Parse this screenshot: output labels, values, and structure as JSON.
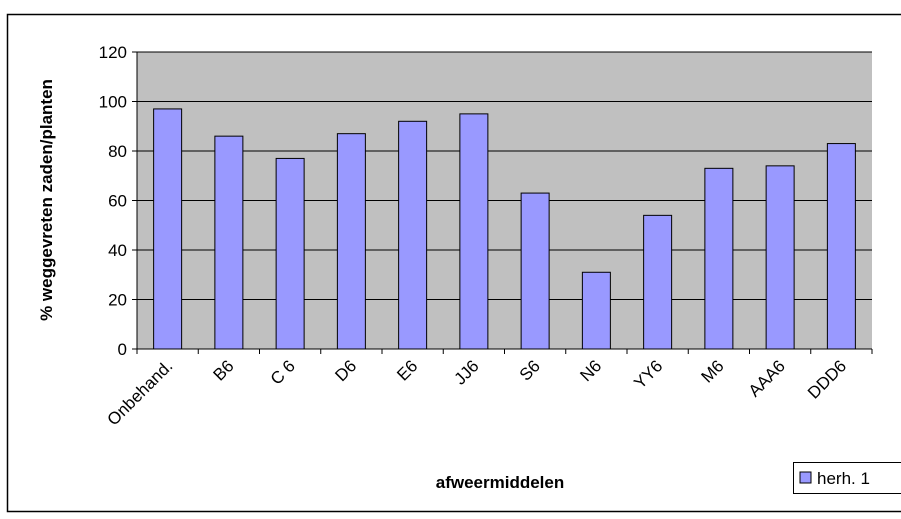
{
  "chart_data": {
    "type": "bar",
    "x_label": "afweermiddelen",
    "y_label": "% weggevreten zaden/planten",
    "categories": [
      "Onbehand.",
      "B6",
      "C 6",
      "D6",
      "E6",
      "JJ6",
      "S6",
      "N6",
      "YY6",
      "M6",
      "AAA6",
      "DDD6"
    ],
    "series": [
      {
        "name": "herh. 1",
        "color": "#9999ff",
        "values": [
          97,
          86,
          77,
          87,
          92,
          95,
          63,
          31,
          54,
          73,
          74,
          83
        ]
      }
    ],
    "ylim": [
      0,
      120
    ],
    "yticks": [
      0,
      20,
      40,
      60,
      80,
      100,
      120
    ],
    "grid": true,
    "legend": "bottom-right"
  }
}
